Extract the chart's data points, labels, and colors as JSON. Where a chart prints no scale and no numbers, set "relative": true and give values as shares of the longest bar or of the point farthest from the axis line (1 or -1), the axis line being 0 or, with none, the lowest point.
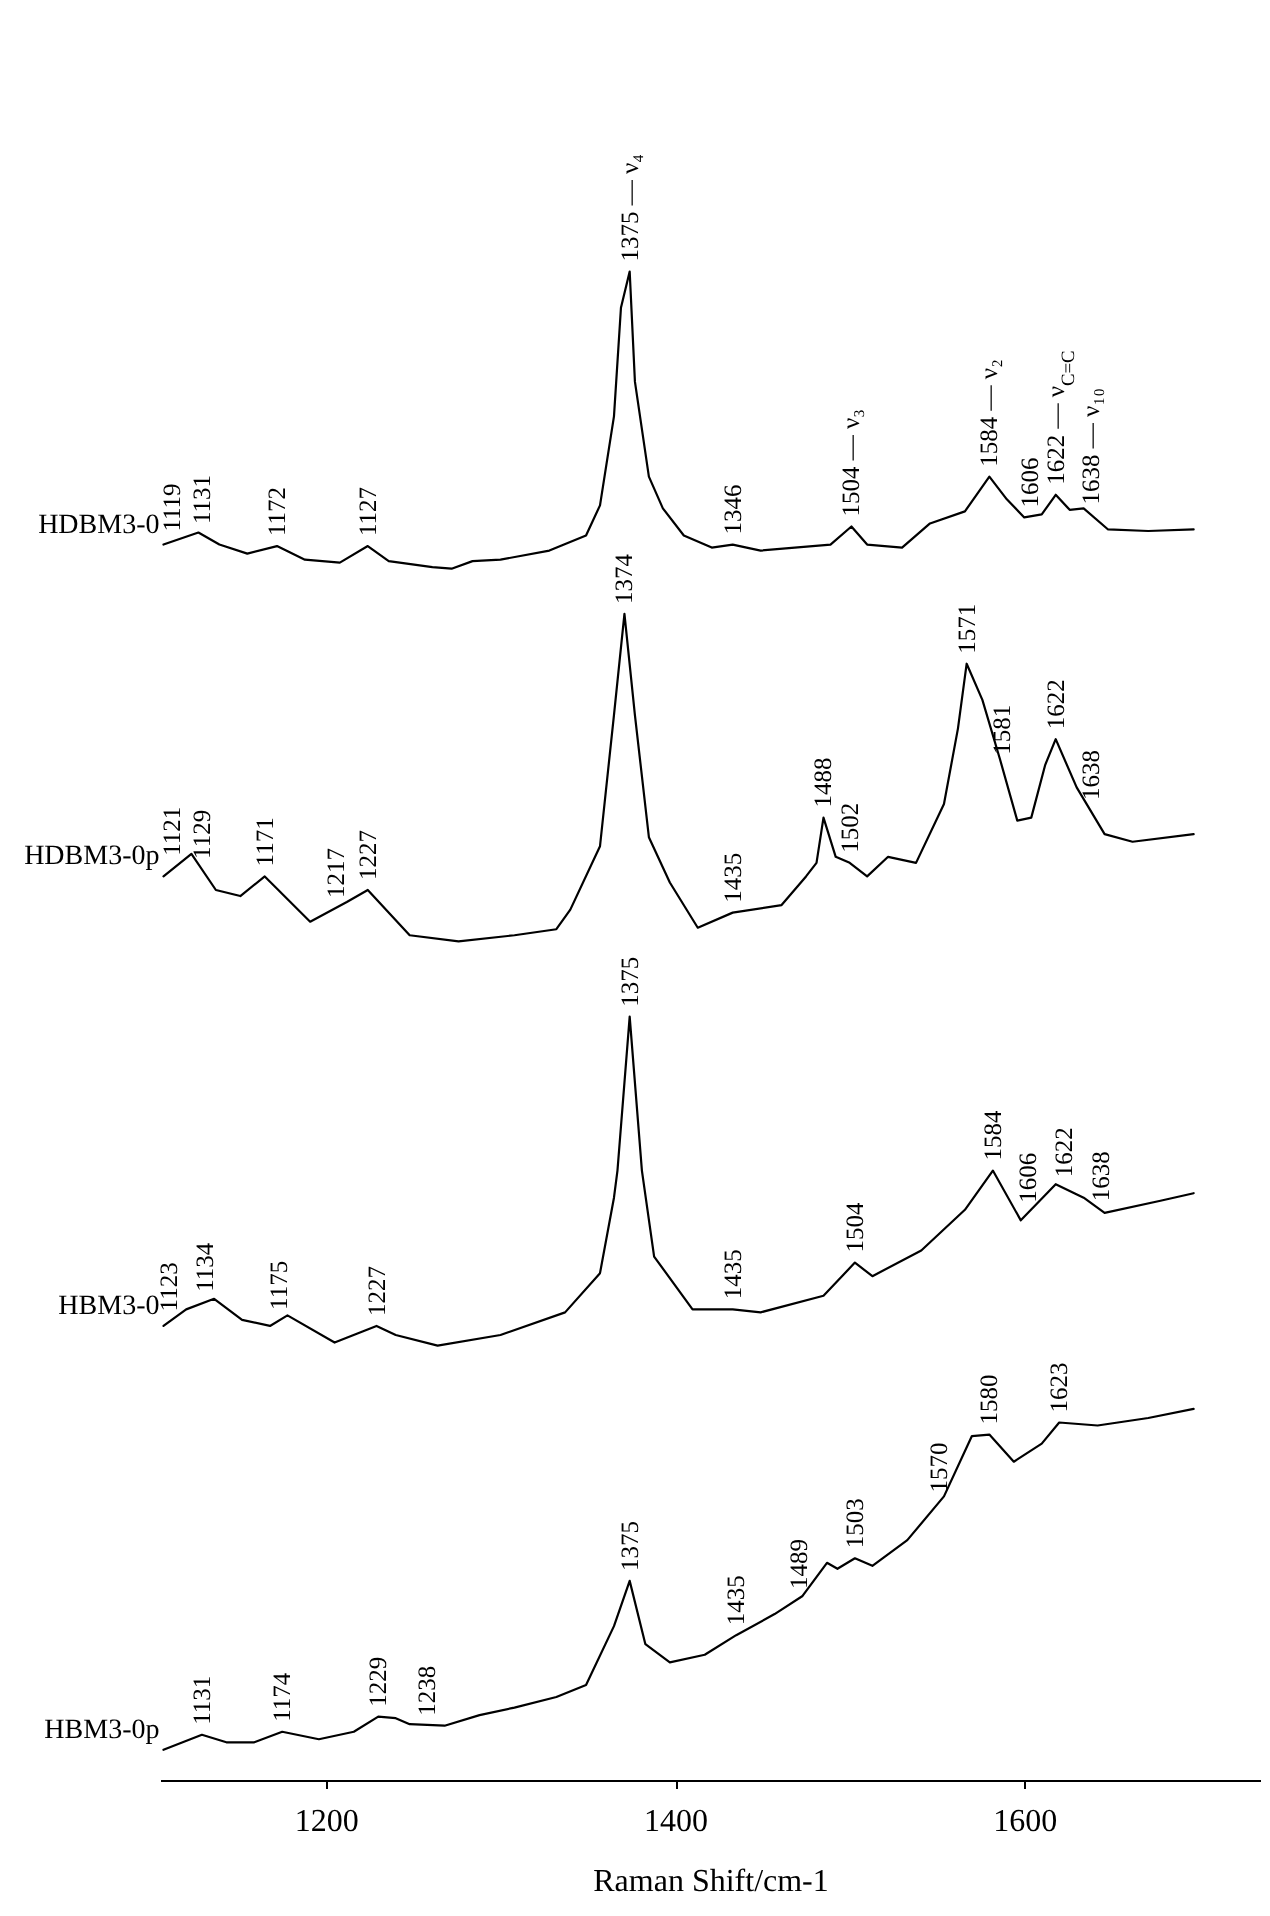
{
  "chart_data": {
    "type": "line",
    "relative": true,
    "xlim": [
      1105,
      1735
    ],
    "xticks": [
      1200,
      1400,
      1600
    ],
    "tick_labels": "x",
    "xlabel": "Raman Shift/cm-1",
    "series": [
      {
        "name": "HDBM3-0",
        "color": "#000000",
        "x": [
          1107,
          1127,
          1139,
          1155,
          1172,
          1188,
          1208,
          1224,
          1236,
          1261,
          1272,
          1284,
          1300,
          1328,
          1349,
          1357,
          1365,
          1369,
          1374,
          1377,
          1385,
          1393,
          1405,
          1421,
          1433,
          1449,
          1489,
          1501,
          1510,
          1530,
          1546,
          1566,
          1580,
          1590,
          1600,
          1610,
          1618,
          1626,
          1634,
          1648,
          1671,
          1697
        ],
        "values": [
          0.819,
          0.827,
          0.819,
          0.813,
          0.818,
          0.809,
          0.807,
          0.818,
          0.808,
          0.804,
          0.803,
          0.808,
          0.809,
          0.815,
          0.825,
          0.845,
          0.904,
          0.976,
          1,
          0.927,
          0.864,
          0.843,
          0.825,
          0.817,
          0.819,
          0.815,
          0.819,
          0.831,
          0.819,
          0.817,
          0.833,
          0.841,
          0.864,
          0.849,
          0.837,
          0.839,
          0.852,
          0.842,
          0.843,
          0.829,
          0.828,
          0.829
        ]
      },
      {
        "name": "HDBM3-0p",
        "color": "#000000",
        "x": [
          1107,
          1123,
          1137,
          1151,
          1165,
          1191,
          1212,
          1224,
          1248,
          1276,
          1308,
          1332,
          1340,
          1357,
          1365,
          1371,
          1377,
          1385,
          1397,
          1413,
          1433,
          1461,
          1475,
          1481,
          1485,
          1492,
          1500,
          1510,
          1522,
          1538,
          1554,
          1562,
          1567,
          1576,
          1586,
          1596,
          1604,
          1612,
          1618,
          1630,
          1646,
          1662,
          1697
        ],
        "values": [
          0.599,
          0.614,
          0.59,
          0.586,
          0.599,
          0.569,
          0.582,
          0.59,
          0.56,
          0.556,
          0.56,
          0.564,
          0.577,
          0.619,
          0.706,
          0.773,
          0.706,
          0.625,
          0.595,
          0.565,
          0.575,
          0.58,
          0.599,
          0.608,
          0.638,
          0.612,
          0.608,
          0.599,
          0.612,
          0.608,
          0.647,
          0.697,
          0.74,
          0.716,
          0.677,
          0.636,
          0.638,
          0.673,
          0.69,
          0.658,
          0.627,
          0.622,
          0.627
        ]
      },
      {
        "name": "HBM3-0",
        "color": "#000000",
        "x": [
          1107,
          1120,
          1136,
          1152,
          1168,
          1178,
          1205,
          1229,
          1240,
          1264,
          1300,
          1337,
          1357,
          1365,
          1367,
          1374,
          1381,
          1388,
          1410,
          1433,
          1449,
          1485,
          1503,
          1513,
          1541,
          1566,
          1582,
          1598,
          1618,
          1634,
          1646,
          1678,
          1697
        ],
        "values": [
          0.301,
          0.312,
          0.319,
          0.305,
          0.301,
          0.308,
          0.29,
          0.301,
          0.295,
          0.288,
          0.295,
          0.31,
          0.336,
          0.386,
          0.404,
          0.506,
          0.404,
          0.347,
          0.312,
          0.312,
          0.31,
          0.321,
          0.343,
          0.334,
          0.351,
          0.378,
          0.404,
          0.371,
          0.395,
          0.386,
          0.376,
          0.384,
          0.389
        ]
      },
      {
        "name": "HBM3-0p",
        "color": "#000000",
        "x": [
          1107,
          1129,
          1143,
          1159,
          1175,
          1196,
          1216,
          1230,
          1240,
          1248,
          1268,
          1288,
          1308,
          1332,
          1349,
          1365,
          1374,
          1383,
          1397,
          1417,
          1435,
          1457,
          1473,
          1487,
          1493,
          1503,
          1513,
          1533,
          1554,
          1570,
          1580,
          1594,
          1610,
          1620,
          1642,
          1671,
          1697
        ],
        "values": [
          0.02,
          0.03,
          0.025,
          0.025,
          0.032,
          0.027,
          0.032,
          0.042,
          0.041,
          0.037,
          0.036,
          0.043,
          0.048,
          0.055,
          0.063,
          0.102,
          0.132,
          0.09,
          0.078,
          0.083,
          0.096,
          0.11,
          0.122,
          0.144,
          0.14,
          0.147,
          0.142,
          0.159,
          0.188,
          0.228,
          0.229,
          0.211,
          0.223,
          0.237,
          0.235,
          0.24,
          0.246
        ]
      }
    ],
    "annotations": [
      {
        "text": "1119",
        "x": 1112,
        "y": 0.821
      },
      {
        "text": "1131",
        "x": 1129,
        "y": 0.826
      },
      {
        "text": "1172",
        "x": 1172,
        "y": 0.818
      },
      {
        "text": "1127",
        "x": 1224,
        "y": 0.818
      },
      {
        "text": "1375 — ν₄",
        "x": 1374,
        "y": 1
      },
      {
        "text": "1346",
        "x": 1433,
        "y": 0.819
      },
      {
        "text": "1504 — ν₃",
        "x": 1501,
        "y": 0.831
      },
      {
        "text": "1584 — ν₂",
        "x": 1580,
        "y": 0.864
      },
      {
        "text": "1606",
        "x": 1603,
        "y": 0.837
      },
      {
        "text": "1622 — ν$_{C=C}$",
        "x": 1618,
        "y": 0.852
      },
      {
        "text": "1638 — ν₁₀",
        "x": 1638,
        "y": 0.839
      },
      {
        "text": "1121",
        "x": 1112,
        "y": 0.606
      },
      {
        "text": "1129",
        "x": 1129,
        "y": 0.604
      },
      {
        "text": "1171",
        "x": 1165,
        "y": 0.599
      },
      {
        "text": "1217",
        "x": 1206,
        "y": 0.578
      },
      {
        "text": "1227",
        "x": 1224,
        "y": 0.59
      },
      {
        "text": "1374",
        "x": 1371,
        "y": 0.773
      },
      {
        "text": "1435",
        "x": 1433,
        "y": 0.575
      },
      {
        "text": "1488",
        "x": 1485,
        "y": 0.638
      },
      {
        "text": "1502",
        "x": 1500,
        "y": 0.608
      },
      {
        "text": "1571",
        "x": 1567,
        "y": 0.74
      },
      {
        "text": "1581",
        "x": 1587,
        "y": 0.673
      },
      {
        "text": "1622",
        "x": 1618,
        "y": 0.69
      },
      {
        "text": "1638",
        "x": 1638,
        "y": 0.643
      },
      {
        "text": "1123",
        "x": 1110,
        "y": 0.304
      },
      {
        "text": "1134",
        "x": 1131,
        "y": 0.317
      },
      {
        "text": "1175",
        "x": 1173,
        "y": 0.305
      },
      {
        "text": "1227",
        "x": 1229,
        "y": 0.301
      },
      {
        "text": "1375",
        "x": 1374,
        "y": 0.506
      },
      {
        "text": "1435",
        "x": 1433,
        "y": 0.312
      },
      {
        "text": "1504",
        "x": 1503,
        "y": 0.343
      },
      {
        "text": "1584",
        "x": 1582,
        "y": 0.404
      },
      {
        "text": "1606",
        "x": 1602,
        "y": 0.376
      },
      {
        "text": "1622",
        "x": 1623,
        "y": 0.393
      },
      {
        "text": "1638",
        "x": 1644,
        "y": 0.377
      },
      {
        "text": "1131",
        "x": 1129,
        "y": 0.03
      },
      {
        "text": "1174",
        "x": 1175,
        "y": 0.032
      },
      {
        "text": "1229",
        "x": 1230,
        "y": 0.042
      },
      {
        "text": "1238",
        "x": 1258,
        "y": 0.036
      },
      {
        "text": "1375",
        "x": 1374,
        "y": 0.132
      },
      {
        "text": "1435",
        "x": 1435,
        "y": 0.096
      },
      {
        "text": "1489",
        "x": 1471,
        "y": 0.12
      },
      {
        "text": "1503",
        "x": 1503,
        "y": 0.147
      },
      {
        "text": "1570",
        "x": 1551,
        "y": 0.184
      },
      {
        "text": "1580",
        "x": 1580,
        "y": 0.229
      },
      {
        "text": "1623",
        "x": 1620,
        "y": 0.237
      }
    ]
  }
}
